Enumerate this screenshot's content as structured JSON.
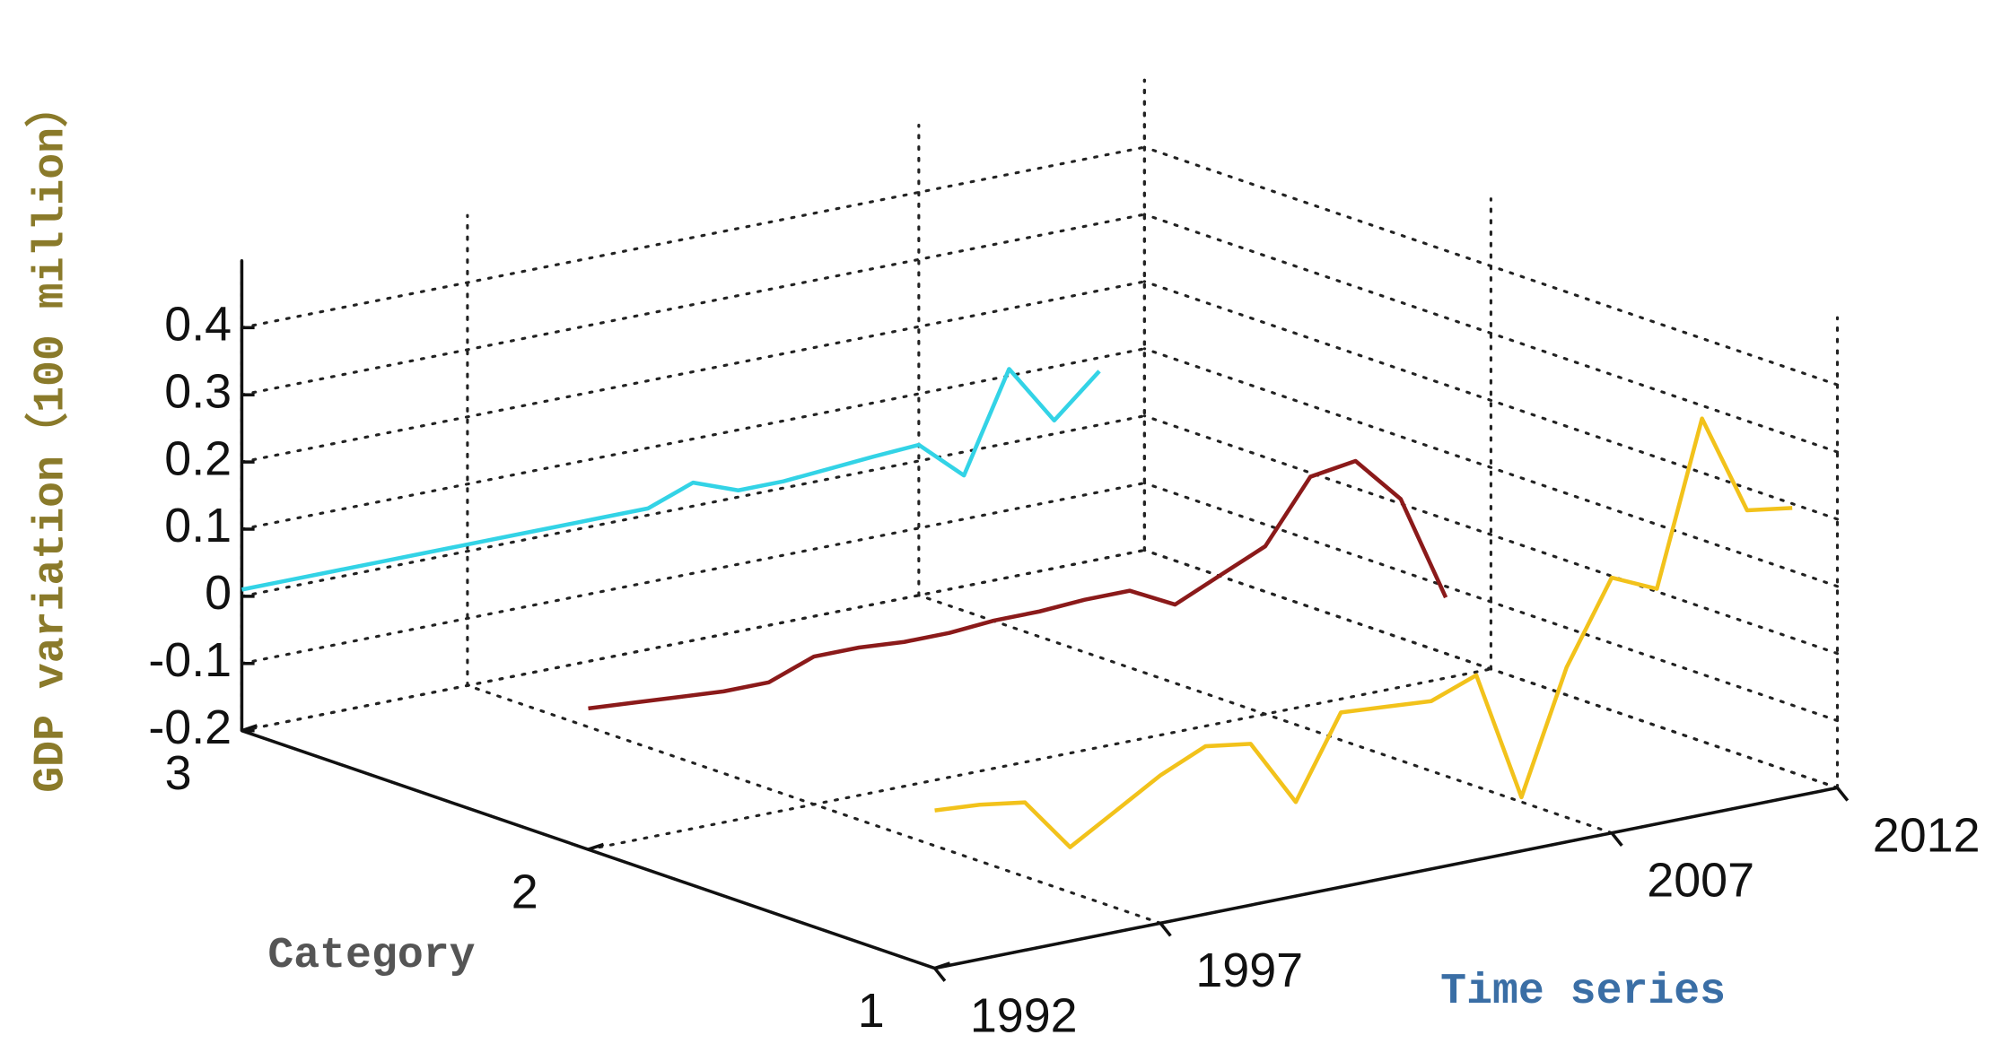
{
  "chart_data": {
    "type": "line3d",
    "xlabel": "Time series",
    "ylabel": "Category",
    "zlabel": "GDP variation（100 million）",
    "x": [
      1992,
      1993,
      1994,
      1995,
      1996,
      1997,
      1998,
      1999,
      2000,
      2001,
      2002,
      2003,
      2004,
      2005,
      2006,
      2007,
      2008,
      2009,
      2010,
      2011
    ],
    "xlim": [
      1992,
      2012
    ],
    "xticks": [
      1992,
      1997,
      2007,
      2012
    ],
    "ylim": [
      1,
      3
    ],
    "yticks": [
      1,
      2,
      3
    ],
    "zlim": [
      -0.2,
      0.5
    ],
    "zticks": [
      -0.2,
      -0.1,
      0,
      0.1,
      0.2,
      0.3,
      0.4
    ],
    "grid": true,
    "series": [
      {
        "category": 3,
        "color": "#33d3e6",
        "values": [
          0.01,
          0.01,
          0.01,
          0.01,
          0.01,
          0.01,
          0.01,
          0.01,
          0.01,
          0.01,
          0.035,
          0.01,
          0.01,
          0.015,
          0.02,
          0.024,
          -0.035,
          0.11,
          0.02,
          0.08
        ]
      },
      {
        "category": 2,
        "color": "#8b1a1a",
        "values": [
          0.01,
          0.005,
          0.0,
          -0.005,
          -0.005,
          0.02,
          0.02,
          0.015,
          0.015,
          0.02,
          0.02,
          0.024,
          0.024,
          -0.01,
          0.02,
          0.05,
          0.14,
          0.15,
          0.08,
          -0.08
        ]
      },
      {
        "category": 1,
        "color": "#f2c21b",
        "values": [
          0.035,
          0.03,
          0.02,
          -0.06,
          -0.02,
          0.02,
          0.05,
          0.04,
          -0.06,
          0.06,
          0.055,
          0.05,
          0.075,
          -0.12,
          0.06,
          0.18,
          0.15,
          0.39,
          0.24,
          0.23
        ]
      }
    ]
  }
}
